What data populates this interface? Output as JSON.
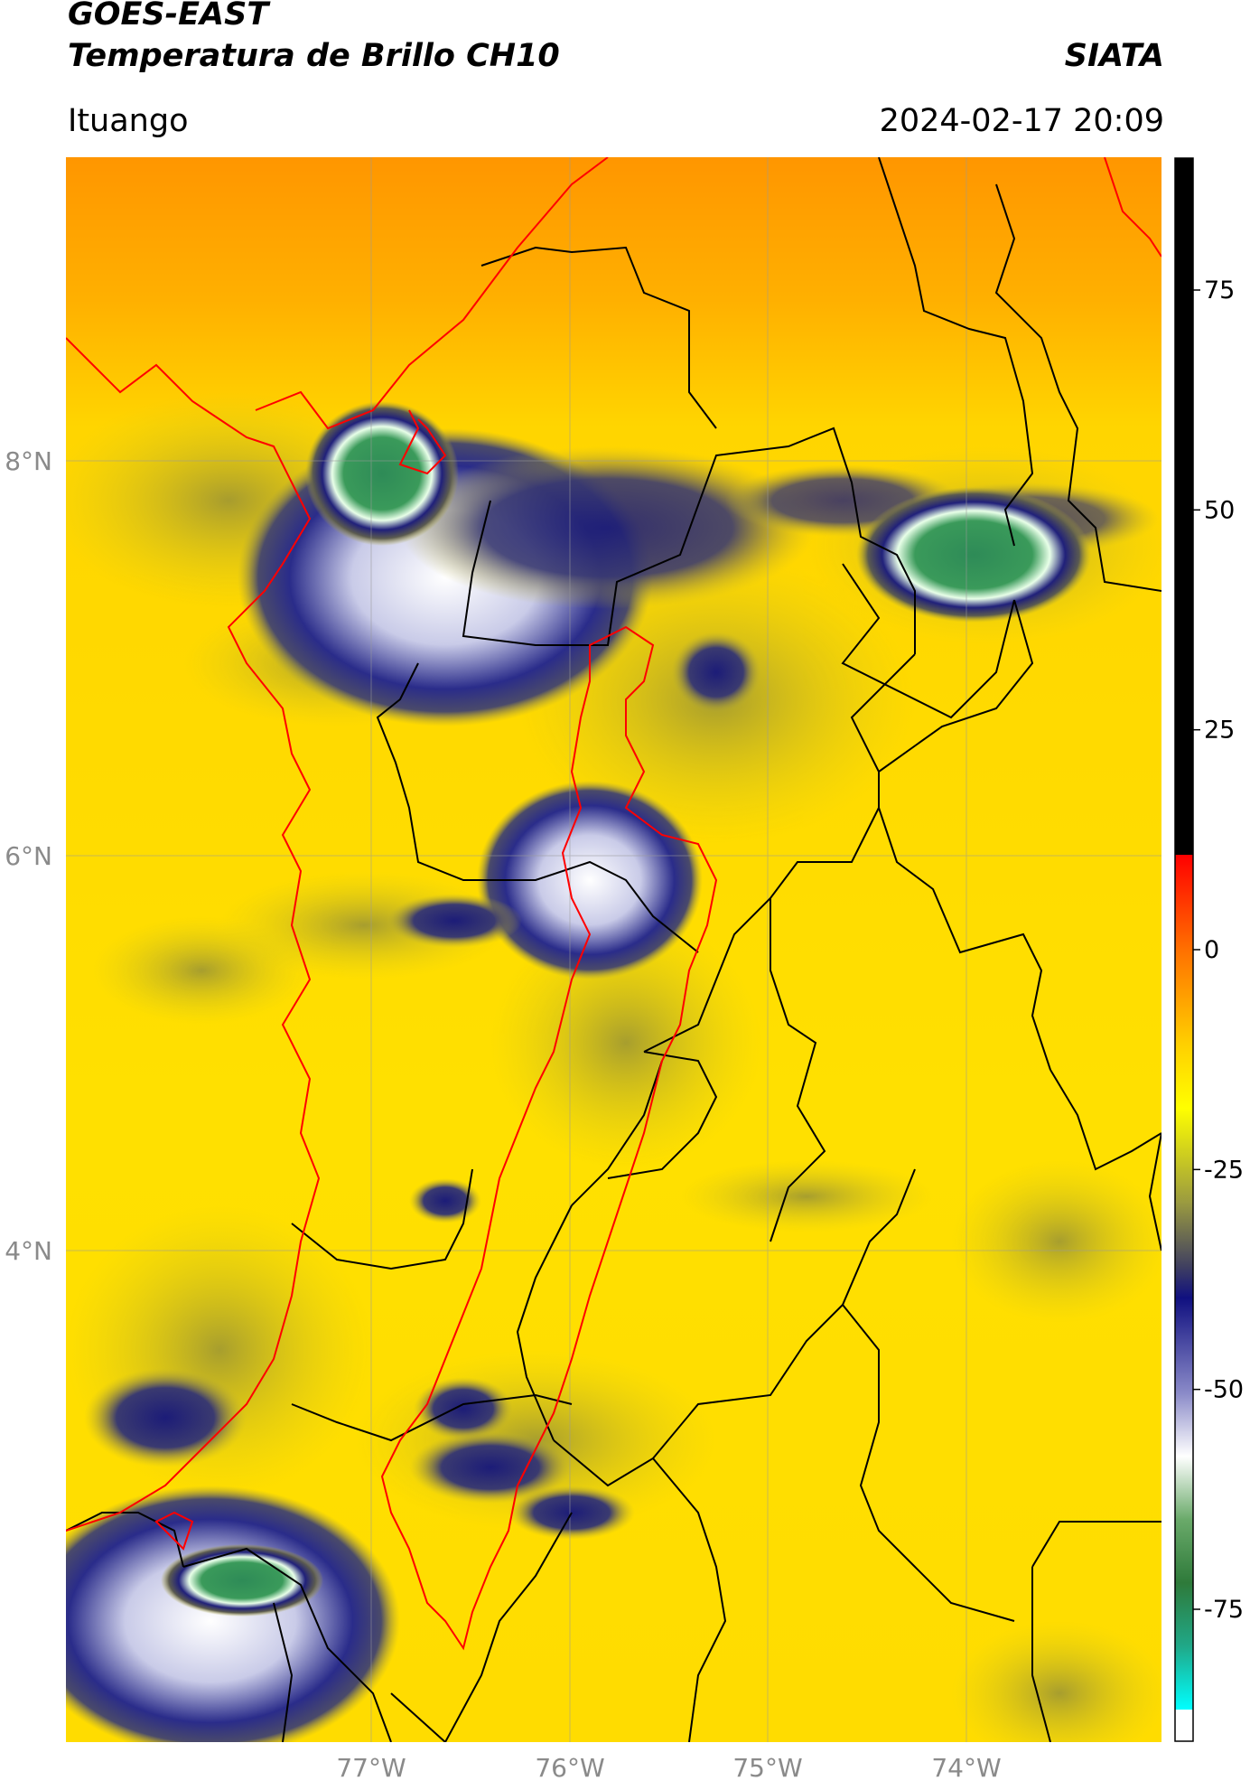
{
  "header": {
    "satellite": "GOES-EAST",
    "product": "Temperatura de Brillo CH10",
    "organization": "SIATA",
    "region": "Ituango",
    "timestamp": "2024-02-17 20:09"
  },
  "map": {
    "lon_labels": [
      "77°W",
      "76°W",
      "75°W",
      "74°W"
    ],
    "lat_labels": [
      "8°N",
      "6°N",
      "4°N"
    ],
    "colors": {
      "background_warm": "#ffd400",
      "background_hot": "#ff9a00",
      "cloud_olive": "#8a8a3a",
      "cloud_navy": "#1a1a80",
      "cloud_white": "#f2f2ff",
      "cloud_green": "#2e8b57",
      "boundary_black": "#000000",
      "boundary_red": "#ff0000"
    }
  },
  "colorbar": {
    "ticks": [
      "75",
      "50",
      "25",
      "0",
      "-25",
      "-50",
      "-75"
    ],
    "tick_values": [
      75,
      50,
      25,
      0,
      -25,
      -50,
      -75
    ],
    "range": [
      -90,
      90
    ]
  }
}
